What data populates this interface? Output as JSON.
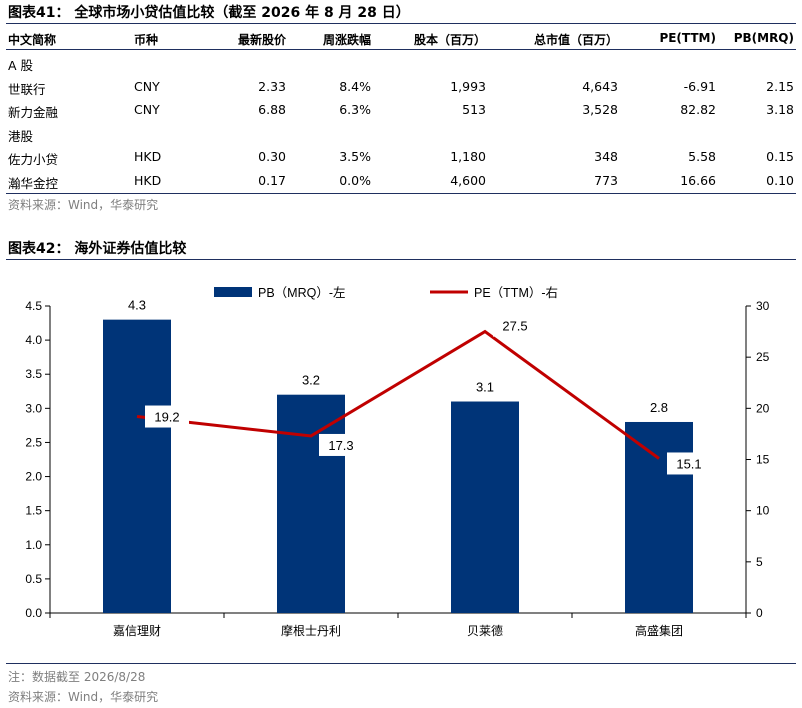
{
  "table41": {
    "caption": "图表41：  全球市场小贷估值比较（截至 2026 年 8 月 28 日）",
    "headers": [
      "中文简称",
      "币种",
      "最新股价",
      "周涨跌幅",
      "股本（百万）",
      "总市值（百万）",
      "PE(TTM)",
      "PB(MRQ)"
    ],
    "rows": [
      {
        "name": "A 股",
        "group": true
      },
      {
        "name": "世联行",
        "currency": "CNY",
        "price": "2.33",
        "change": "8.4%",
        "shares": "1,993",
        "mktcap": "4,643",
        "pe": "-6.91",
        "pb": "2.15"
      },
      {
        "name": "新力金融",
        "currency": "CNY",
        "price": "6.88",
        "change": "6.3%",
        "shares": "513",
        "mktcap": "3,528",
        "pe": "82.82",
        "pb": "3.18"
      },
      {
        "name": "港股",
        "group": true
      },
      {
        "name": "佐力小贷",
        "currency": "HKD",
        "price": "0.30",
        "change": "3.5%",
        "shares": "1,180",
        "mktcap": "348",
        "pe": "5.58",
        "pb": "0.15"
      },
      {
        "name": "瀚华金控",
        "currency": "HKD",
        "price": "0.17",
        "change": "0.0%",
        "shares": "4,600",
        "mktcap": "773",
        "pe": "16.66",
        "pb": "0.10"
      }
    ],
    "source": "资料来源：Wind，华泰研究"
  },
  "figure42": {
    "caption": "图表42：  海外证券估值比较",
    "note": "注：数据截至 2026/8/28",
    "source": "资料来源：Wind，华泰研究"
  },
  "chart_data": {
    "type": "bar",
    "categories": [
      "嘉信理财",
      "摩根士丹利",
      "贝莱德",
      "高盛集团"
    ],
    "series": [
      {
        "name": "PB（MRQ）-左",
        "type": "bar",
        "axis": "left",
        "values": [
          4.3,
          3.2,
          3.1,
          2.8
        ],
        "color": "#003478"
      },
      {
        "name": "PE（TTM）-右",
        "type": "line",
        "axis": "right",
        "values": [
          19.2,
          17.3,
          27.5,
          15.1
        ],
        "color": "#c00000"
      }
    ],
    "left_axis": {
      "min": 0,
      "max": 4.5,
      "step": 0.5,
      "ticks": [
        "0.0",
        "0.5",
        "1.0",
        "1.5",
        "2.0",
        "2.5",
        "3.0",
        "3.5",
        "4.0",
        "4.5"
      ]
    },
    "right_axis": {
      "min": 0,
      "max": 30,
      "step": 5,
      "ticks": [
        "0",
        "5",
        "10",
        "15",
        "20",
        "25",
        "30"
      ]
    },
    "bar_labels": [
      "4.3",
      "3.2",
      "3.1",
      "2.8"
    ],
    "line_labels": [
      "19.2",
      "17.3",
      "27.5",
      "15.1"
    ],
    "legend_position": "top-center",
    "grid": false
  }
}
